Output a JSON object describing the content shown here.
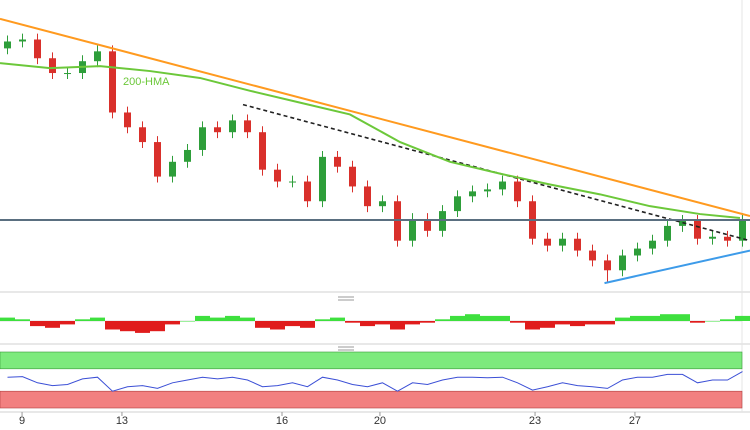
{
  "chart_data": {
    "type": "candlestick",
    "xlim": [
      -0.5,
      49.5
    ],
    "ylim": [
      0,
      290
    ],
    "xticks": [
      {
        "value": 0.97,
        "label": "9"
      },
      {
        "value": 7.63,
        "label": "13"
      },
      {
        "value": 18.3,
        "label": "16"
      },
      {
        "value": 24.83,
        "label": "20"
      },
      {
        "value": 35.17,
        "label": "23"
      },
      {
        "value": 41.83,
        "label": "27"
      }
    ],
    "up_color": "#2e9e3a",
    "down_color": "#d9302b",
    "open": [
      245,
      252,
      254,
      235,
      220,
      220,
      232,
      242,
      180,
      165,
      150,
      115,
      130,
      142,
      165,
      160,
      172,
      160,
      122,
      110,
      110,
      90,
      135,
      125,
      105,
      85,
      90,
      50,
      72,
      60,
      80,
      95,
      100,
      102,
      110,
      90,
      52,
      45,
      52,
      40,
      30,
      20,
      35,
      42,
      50,
      65,
      70,
      52,
      54,
      50
    ],
    "high": [
      258,
      260,
      260,
      241,
      226,
      238,
      248,
      248,
      186,
      171,
      156,
      136,
      148,
      171,
      171,
      178,
      178,
      166,
      128,
      116,
      116,
      141,
      141,
      131,
      111,
      96,
      96,
      78,
      78,
      86,
      101,
      106,
      108,
      116,
      116,
      96,
      58,
      58,
      58,
      46,
      36,
      41,
      48,
      56,
      71,
      76,
      76,
      60,
      60,
      78
    ],
    "low": [
      239,
      246,
      229,
      214,
      214,
      214,
      226,
      174,
      159,
      144,
      109,
      109,
      124,
      136,
      154,
      154,
      154,
      116,
      104,
      104,
      84,
      84,
      119,
      99,
      79,
      79,
      44,
      44,
      54,
      54,
      74,
      89,
      94,
      96,
      84,
      46,
      39,
      39,
      34,
      24,
      8,
      14,
      29,
      36,
      44,
      59,
      46,
      46,
      44,
      44
    ],
    "close": [
      252,
      254,
      235,
      220,
      220,
      232,
      242,
      180,
      165,
      150,
      115,
      130,
      142,
      165,
      160,
      172,
      160,
      122,
      110,
      110,
      90,
      135,
      125,
      105,
      85,
      90,
      50,
      72,
      60,
      80,
      95,
      100,
      102,
      110,
      90,
      52,
      45,
      52,
      40,
      30,
      20,
      35,
      42,
      50,
      65,
      70,
      52,
      54,
      50,
      72
    ],
    "lines": [
      {
        "color": "#ff9a1f",
        "dashed": false,
        "x": [
          -0.5,
          49.5
        ],
        "y": [
          275,
          75
        ]
      },
      {
        "color": "#222222",
        "dashed": true,
        "x": [
          15.7,
          49.5
        ],
        "y": [
          188,
          50
        ]
      },
      {
        "color": "#3d9be9",
        "dashed": false,
        "x": [
          39.8,
          49.5
        ],
        "y": [
          7,
          40
        ]
      },
      {
        "color": "#5a6f80",
        "dashed": false,
        "x": [
          -0.5,
          49.5
        ],
        "y": [
          71,
          71
        ]
      }
    ],
    "hma": {
      "name": "200-HMA",
      "color": "#6cc83a",
      "x": [
        -0.5,
        2.83,
        6.17,
        9.5,
        12.83,
        16.17,
        19.5,
        22.83,
        26.17,
        29.5,
        32.83,
        36.17,
        39.5,
        42.83,
        46.17,
        48.83
      ],
      "values": [
        230,
        225,
        227,
        222,
        215,
        202,
        190,
        178,
        150,
        130,
        118,
        107,
        97,
        85,
        77,
        73
      ]
    },
    "macd": {
      "type": "bar",
      "ylim": [
        -10,
        10
      ],
      "up_color": "#3ee03e",
      "down_color": "#e01c1c",
      "values": [
        2,
        1,
        -3,
        -4,
        -2,
        1,
        2,
        -5,
        -6,
        -7,
        -6,
        -2,
        0,
        3,
        2,
        3,
        2,
        -4,
        -5,
        -3,
        -4,
        1,
        2,
        -1,
        -3,
        -2,
        -5,
        -2,
        -1,
        1,
        3,
        4,
        3,
        3,
        -1,
        -5,
        -4,
        -2,
        -3,
        -2,
        -2,
        2,
        3,
        3,
        4,
        4,
        -1,
        0,
        1,
        3
      ]
    },
    "rsi": {
      "type": "line",
      "ylim": [
        0,
        100
      ],
      "color": "#3b4fd6",
      "upper_band": [
        70,
        100
      ],
      "lower_band": [
        0,
        30
      ],
      "upper_color": "#7dea7d",
      "lower_color": "#f28080",
      "values": [
        55,
        56,
        45,
        40,
        42,
        52,
        55,
        30,
        38,
        40,
        35,
        45,
        50,
        55,
        52,
        55,
        50,
        38,
        40,
        45,
        38,
        55,
        50,
        42,
        38,
        45,
        30,
        45,
        42,
        50,
        55,
        55,
        54,
        55,
        45,
        32,
        38,
        45,
        40,
        38,
        35,
        50,
        55,
        55,
        60,
        60,
        45,
        50,
        50,
        65
      ]
    }
  }
}
